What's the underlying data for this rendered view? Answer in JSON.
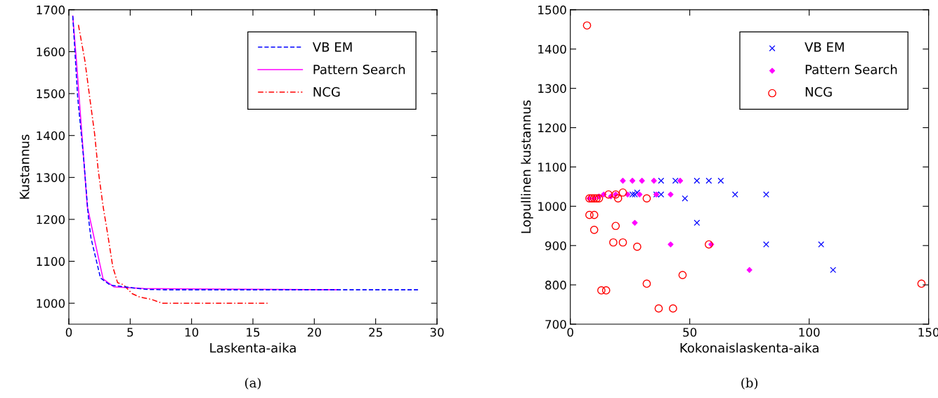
{
  "chart_data": [
    {
      "type": "line",
      "xlabel": "Laskenta-aika",
      "ylabel": "Kustannus",
      "annotations": [
        "(a)"
      ],
      "xlim": [
        0,
        30
      ],
      "ylim": [
        950,
        1700
      ],
      "xticks": [
        0,
        5,
        10,
        15,
        20,
        25,
        30
      ],
      "yticks": [
        1000,
        1100,
        1200,
        1300,
        1400,
        1500,
        1600,
        1700
      ],
      "legend": "top right",
      "grid": false,
      "series": [
        {
          "name": "VB EM",
          "color": "#0000ff",
          "line_style": "dashed",
          "x": [
            0.32,
            0.72,
            1.2,
            1.6,
            1.8,
            2.58,
            3.38,
            6.3,
            7.8,
            28.45
          ],
          "values": [
            1685,
            1491,
            1347,
            1203,
            1156,
            1060,
            1043,
            1033,
            1032,
            1032
          ]
        },
        {
          "name": "Pattern Search",
          "color": "#ff00ff",
          "line_style": "solid",
          "x": [
            0.32,
            0.62,
            1.5,
            2.79,
            3.67,
            6.1,
            21.9
          ],
          "values": [
            1685,
            1578,
            1231,
            1058,
            1039,
            1035,
            1032
          ]
        },
        {
          "name": "NCG",
          "color": "#ff0000",
          "line_style": "dashdot",
          "x": [
            0.78,
            1.31,
            1.7,
            2.1,
            2.39,
            2.79,
            3.18,
            3.58,
            3.97,
            4.46,
            5.15,
            5.75,
            6.74,
            7.6,
            16.3
          ],
          "values": [
            1664,
            1578,
            1491,
            1404,
            1318,
            1231,
            1162,
            1087,
            1049,
            1044,
            1023,
            1015,
            1009,
            1000,
            1000
          ]
        }
      ]
    },
    {
      "type": "scatter",
      "xlabel": "Kokonaislaskenta-aika",
      "ylabel": "Lopullinen kustannus",
      "annotations": [
        "(b)"
      ],
      "xlim": [
        0,
        150
      ],
      "ylim": [
        700,
        1500
      ],
      "xticks": [
        0,
        50,
        100,
        150
      ],
      "yticks": [
        700,
        800,
        900,
        1000,
        1100,
        1200,
        1300,
        1400,
        1500
      ],
      "legend": "top right",
      "grid": false,
      "series": [
        {
          "name": "VB EM",
          "color": "#0000ff",
          "marker": "cross",
          "x": [
            38,
            44,
            53,
            58,
            63,
            69,
            82,
            48,
            53,
            82,
            105,
            110,
            26,
            28,
            36,
            38,
            27
          ],
          "values": [
            1065,
            1065,
            1065,
            1065,
            1065,
            1030,
            1030,
            1020,
            958,
            903,
            903,
            838,
            1030,
            1035,
            1030,
            1030,
            1030
          ]
        },
        {
          "name": "Pattern Search",
          "color": "#ff00ff",
          "marker": "diamond",
          "x": [
            22,
            26,
            30,
            35,
            46,
            36,
            42,
            27,
            42,
            59,
            75,
            8,
            10,
            14,
            19,
            24,
            17,
            29,
            12
          ],
          "values": [
            1065,
            1065,
            1065,
            1065,
            1065,
            1030,
            1030,
            958,
            903,
            903,
            838,
            1020,
            1020,
            1030,
            1030,
            1030,
            1025,
            1030,
            1025
          ]
        },
        {
          "name": "NCG",
          "color": "#ff0000",
          "marker": "circle",
          "x": [
            7,
            8,
            9,
            10,
            11,
            12,
            20,
            32,
            19,
            22,
            16,
            8,
            10,
            10,
            19,
            18,
            22,
            28,
            58,
            47,
            32,
            147,
            13,
            15,
            37,
            43
          ],
          "values": [
            1460,
            1020,
            1020,
            1020,
            1020,
            1020,
            1020,
            1020,
            1030,
            1035,
            1030,
            978,
            978,
            940,
            950,
            908,
            908,
            897,
            903,
            825,
            803,
            803,
            786,
            786,
            740,
            740
          ]
        }
      ]
    }
  ]
}
